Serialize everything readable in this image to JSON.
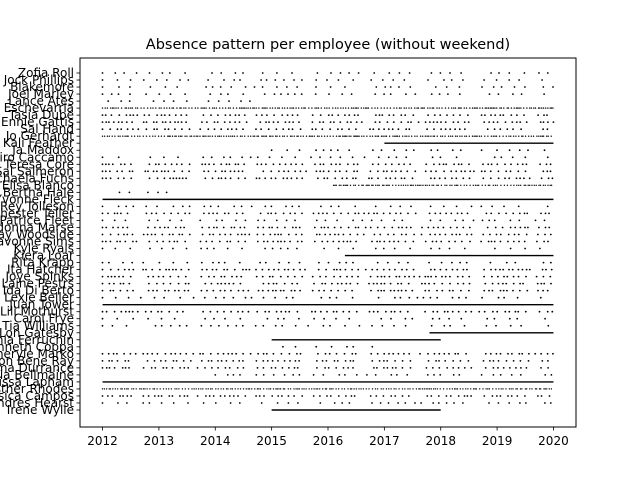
{
  "chart_data": {
    "type": "scatter",
    "title": "Absence pattern per employee (without weekend)",
    "xlabel": "",
    "ylabel": "",
    "xlim": [
      2011.6,
      2020.4
    ],
    "x_ticks": [
      "2012",
      "2013",
      "2014",
      "2015",
      "2016",
      "2017",
      "2018",
      "2019",
      "2020"
    ],
    "grid": false,
    "legend": "none",
    "marker_color": "#000000",
    "employees": [
      {
        "name": "Zofia Roll",
        "pattern": "sparse",
        "start": 2012.0,
        "end": 2020.0
      },
      {
        "name": "Jock Phillips",
        "pattern": "sparse",
        "start": 2012.0,
        "end": 2020.0
      },
      {
        "name": "Blakemore",
        "pattern": "sparse",
        "start": 2012.0,
        "end": 2020.0
      },
      {
        "name": "Joel Marley",
        "pattern": "sparse",
        "start": 2012.0,
        "end": 2020.0
      },
      {
        "name": "Lance Ates",
        "pattern": "sparse",
        "start": 2012.1,
        "end": 2014.8
      },
      {
        "name": "Eschevarria",
        "pattern": "dense",
        "start": 2012.0,
        "end": 2020.0
      },
      {
        "name": "Tasia Dube",
        "pattern": "medium",
        "start": 2012.0,
        "end": 2020.0
      },
      {
        "name": "Ennie Gattis",
        "pattern": "medium",
        "start": 2012.0,
        "end": 2020.0
      },
      {
        "name": "Sal Hand",
        "pattern": "medium",
        "start": 2012.0,
        "end": 2020.0
      },
      {
        "name": "Jo Gerhardt",
        "pattern": "dense",
        "start": 2012.0,
        "end": 2020.0
      },
      {
        "name": "Kali Feather",
        "pattern": "solid",
        "start": 2017.0,
        "end": 2020.0
      },
      {
        "name": "Ja Maddox",
        "pattern": "sparse",
        "start": 2015.0,
        "end": 2020.0
      },
      {
        "name": "Cairo Caccamo",
        "pattern": "sparse",
        "start": 2012.0,
        "end": 2020.0
      },
      {
        "name": "Teresa Core",
        "pattern": "medium",
        "start": 2012.0,
        "end": 2020.0
      },
      {
        "name": "Sal Salmeron",
        "pattern": "medium",
        "start": 2012.0,
        "end": 2020.0
      },
      {
        "name": "Michaela Fuchs",
        "pattern": "medium",
        "start": 2012.0,
        "end": 2020.0
      },
      {
        "name": "Elisa Blanco",
        "pattern": "dense",
        "start": 2016.1,
        "end": 2020.0
      },
      {
        "name": "Bertha Hale",
        "pattern": "sparse",
        "start": 2012.3,
        "end": 2013.2
      },
      {
        "name": "Yvonne Fleck",
        "pattern": "solid",
        "start": 2012.0,
        "end": 2020.0
      },
      {
        "name": "Rey Tolleson",
        "pattern": "sparse",
        "start": 2012.0,
        "end": 2020.0
      },
      {
        "name": "Chester Teller",
        "pattern": "medium",
        "start": 2012.0,
        "end": 2020.0
      },
      {
        "name": "Patrice Fleet",
        "pattern": "sparse",
        "start": 2012.0,
        "end": 2020.0
      },
      {
        "name": "Ladonna Marse",
        "pattern": "medium",
        "start": 2012.0,
        "end": 2020.0
      },
      {
        "name": "Kay Woodside",
        "pattern": "medium",
        "start": 2012.0,
        "end": 2020.0
      },
      {
        "name": "Lavonne Sims",
        "pattern": "medium",
        "start": 2012.0,
        "end": 2020.0
      },
      {
        "name": "Kyle Ryals",
        "pattern": "sparse",
        "start": 2012.0,
        "end": 2020.0
      },
      {
        "name": "Kiera Loar",
        "pattern": "solid",
        "start": 2016.3,
        "end": 2020.0
      },
      {
        "name": "Rita Krapp",
        "pattern": "sparse",
        "start": 2012.0,
        "end": 2020.0
      },
      {
        "name": "Ita Hatcher",
        "pattern": "medium",
        "start": 2012.0,
        "end": 2020.0
      },
      {
        "name": "Joye Spinks",
        "pattern": "medium",
        "start": 2012.0,
        "end": 2020.0
      },
      {
        "name": "Laine Pestrs",
        "pattern": "medium",
        "start": 2012.0,
        "end": 2020.0
      },
      {
        "name": "Ida Di Berto",
        "pattern": "medium",
        "start": 2012.0,
        "end": 2020.0
      },
      {
        "name": "Lexie Beller",
        "pattern": "sparse",
        "start": 2012.0,
        "end": 2020.0
      },
      {
        "name": "Juan Tower",
        "pattern": "solid",
        "start": 2012.0,
        "end": 2020.0
      },
      {
        "name": "Lili Mothurst",
        "pattern": "medium",
        "start": 2012.0,
        "end": 2020.0
      },
      {
        "name": "Carol Frye",
        "pattern": "sparse",
        "start": 2012.0,
        "end": 2020.0
      },
      {
        "name": "Tia Williams",
        "pattern": "sparse",
        "start": 2012.0,
        "end": 2020.0
      },
      {
        "name": "Lon Gatesby",
        "pattern": "solid",
        "start": 2017.8,
        "end": 2020.0
      },
      {
        "name": "Tania Ferruchin",
        "pattern": "solid",
        "start": 2015.0,
        "end": 2018.0
      },
      {
        "name": "Kenneth Coppa",
        "pattern": "sparse",
        "start": 2015.2,
        "end": 2016.8
      },
      {
        "name": "Cheryle Marko",
        "pattern": "medium",
        "start": 2012.0,
        "end": 2020.0
      },
      {
        "name": "Vernon Bene Ray",
        "pattern": "medium",
        "start": 2012.0,
        "end": 2020.0
      },
      {
        "name": "Emma Durrance",
        "pattern": "medium",
        "start": 2012.0,
        "end": 2020.0
      },
      {
        "name": "Tia Bellmaine",
        "pattern": "sparse",
        "start": 2014.0,
        "end": 2020.0
      },
      {
        "name": "Lissa Lapham",
        "pattern": "solid",
        "start": 2012.0,
        "end": 2020.0
      },
      {
        "name": "Esther Rhodes",
        "pattern": "dense",
        "start": 2012.0,
        "end": 2020.0
      },
      {
        "name": "Jessica Campos",
        "pattern": "medium",
        "start": 2012.0,
        "end": 2020.0
      },
      {
        "name": "Andres Hearst",
        "pattern": "sparse",
        "start": 2012.0,
        "end": 2020.0
      },
      {
        "name": "Irene Wylie",
        "pattern": "solid",
        "start": 2015.0,
        "end": 2018.0
      }
    ]
  }
}
